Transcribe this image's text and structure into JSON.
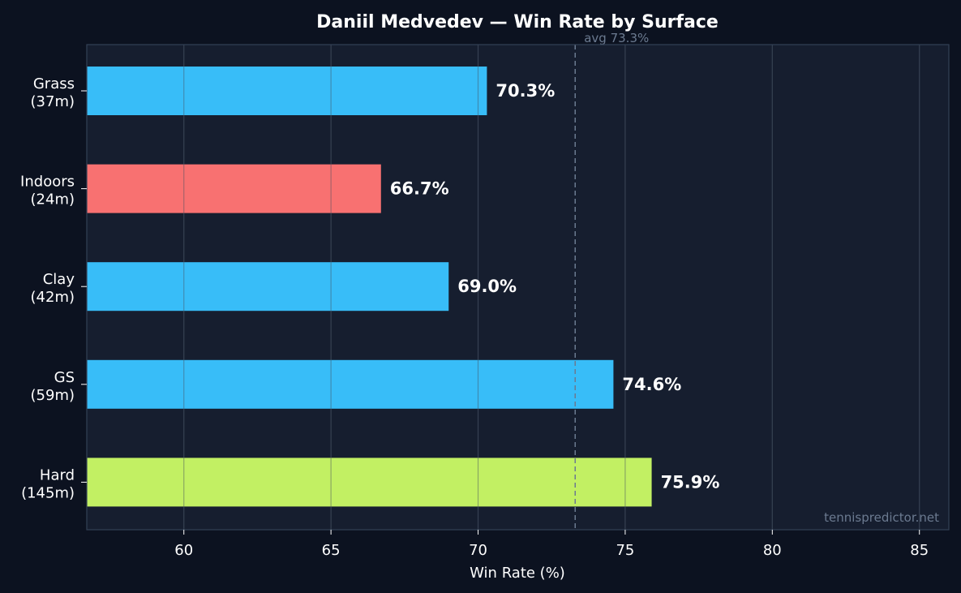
{
  "chart_data": {
    "type": "bar",
    "orientation": "horizontal",
    "title": "Daniil Medvedev — Win Rate by Surface",
    "xlabel": "Win Rate (%)",
    "ylabel": "",
    "xlim": [
      56.7,
      86.0
    ],
    "xticks": [
      60,
      65,
      70,
      75,
      80,
      85
    ],
    "grid": "vertical",
    "categories": [
      "Grass\n(37m)",
      "Indoors\n(24m)",
      "Clay\n(42m)",
      "GS\n(59m)",
      "Hard\n(145m)"
    ],
    "values": [
      70.3,
      66.7,
      69.0,
      74.6,
      75.9
    ],
    "value_labels": [
      "70.3%",
      "66.7%",
      "69.0%",
      "74.6%",
      "75.9%"
    ],
    "bar_colors": [
      "#38bdf8",
      "#f87171",
      "#38bdf8",
      "#38bdf8",
      "#c2f063"
    ],
    "reference_line": {
      "value": 73.3,
      "label": "avg 73.3%"
    },
    "watermark": "tennispredictor.net"
  },
  "colors": {
    "background": "#0c1220",
    "plot_background": "#161e2f",
    "grid": "#283446",
    "text": "#ffffff",
    "muted_text": "#6b7a90"
  }
}
